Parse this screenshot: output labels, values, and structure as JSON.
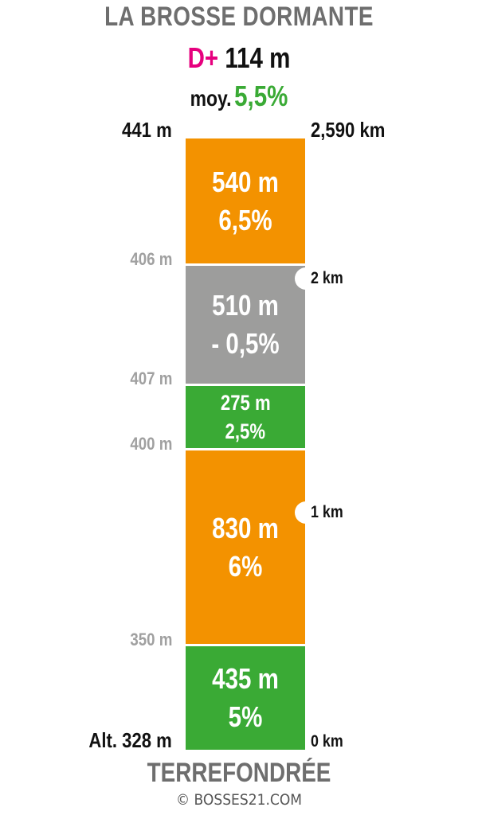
{
  "header": {
    "title": "LA BROSSE DORMANTE",
    "dplus_label": "D+",
    "dplus_value": "114 m",
    "moy_label": "moy.",
    "moy_value": "5,5%"
  },
  "colors": {
    "orange": "#f39200",
    "grey": "#9d9d9c",
    "green": "#3aaa35",
    "magenta": "#e6007e",
    "title_grey": "#6e6e6e",
    "altitude_grey": "#a0a0a0"
  },
  "segments": [
    {
      "distance": "540 m",
      "gradient": "6,5%",
      "color": "orange"
    },
    {
      "distance": "510 m",
      "gradient": "- 0,5%",
      "color": "grey"
    },
    {
      "distance": "275 m",
      "gradient": "2,5%",
      "color": "green"
    },
    {
      "distance": "830 m",
      "gradient": "6%",
      "color": "orange"
    },
    {
      "distance": "435 m",
      "gradient": "5%",
      "color": "green"
    }
  ],
  "altitudes": {
    "top": "441 m",
    "a406": "406 m",
    "a407": "407 m",
    "a400": "400 m",
    "a350": "350 m",
    "bottom": "Alt. 328 m"
  },
  "km_markers": {
    "total": "2,590 km",
    "km2": "2 km",
    "km1": "1 km",
    "km0": "0 km"
  },
  "footer": {
    "start_name": "TERREFONDRÉE",
    "copyright": "© BOSSES21.COM"
  }
}
